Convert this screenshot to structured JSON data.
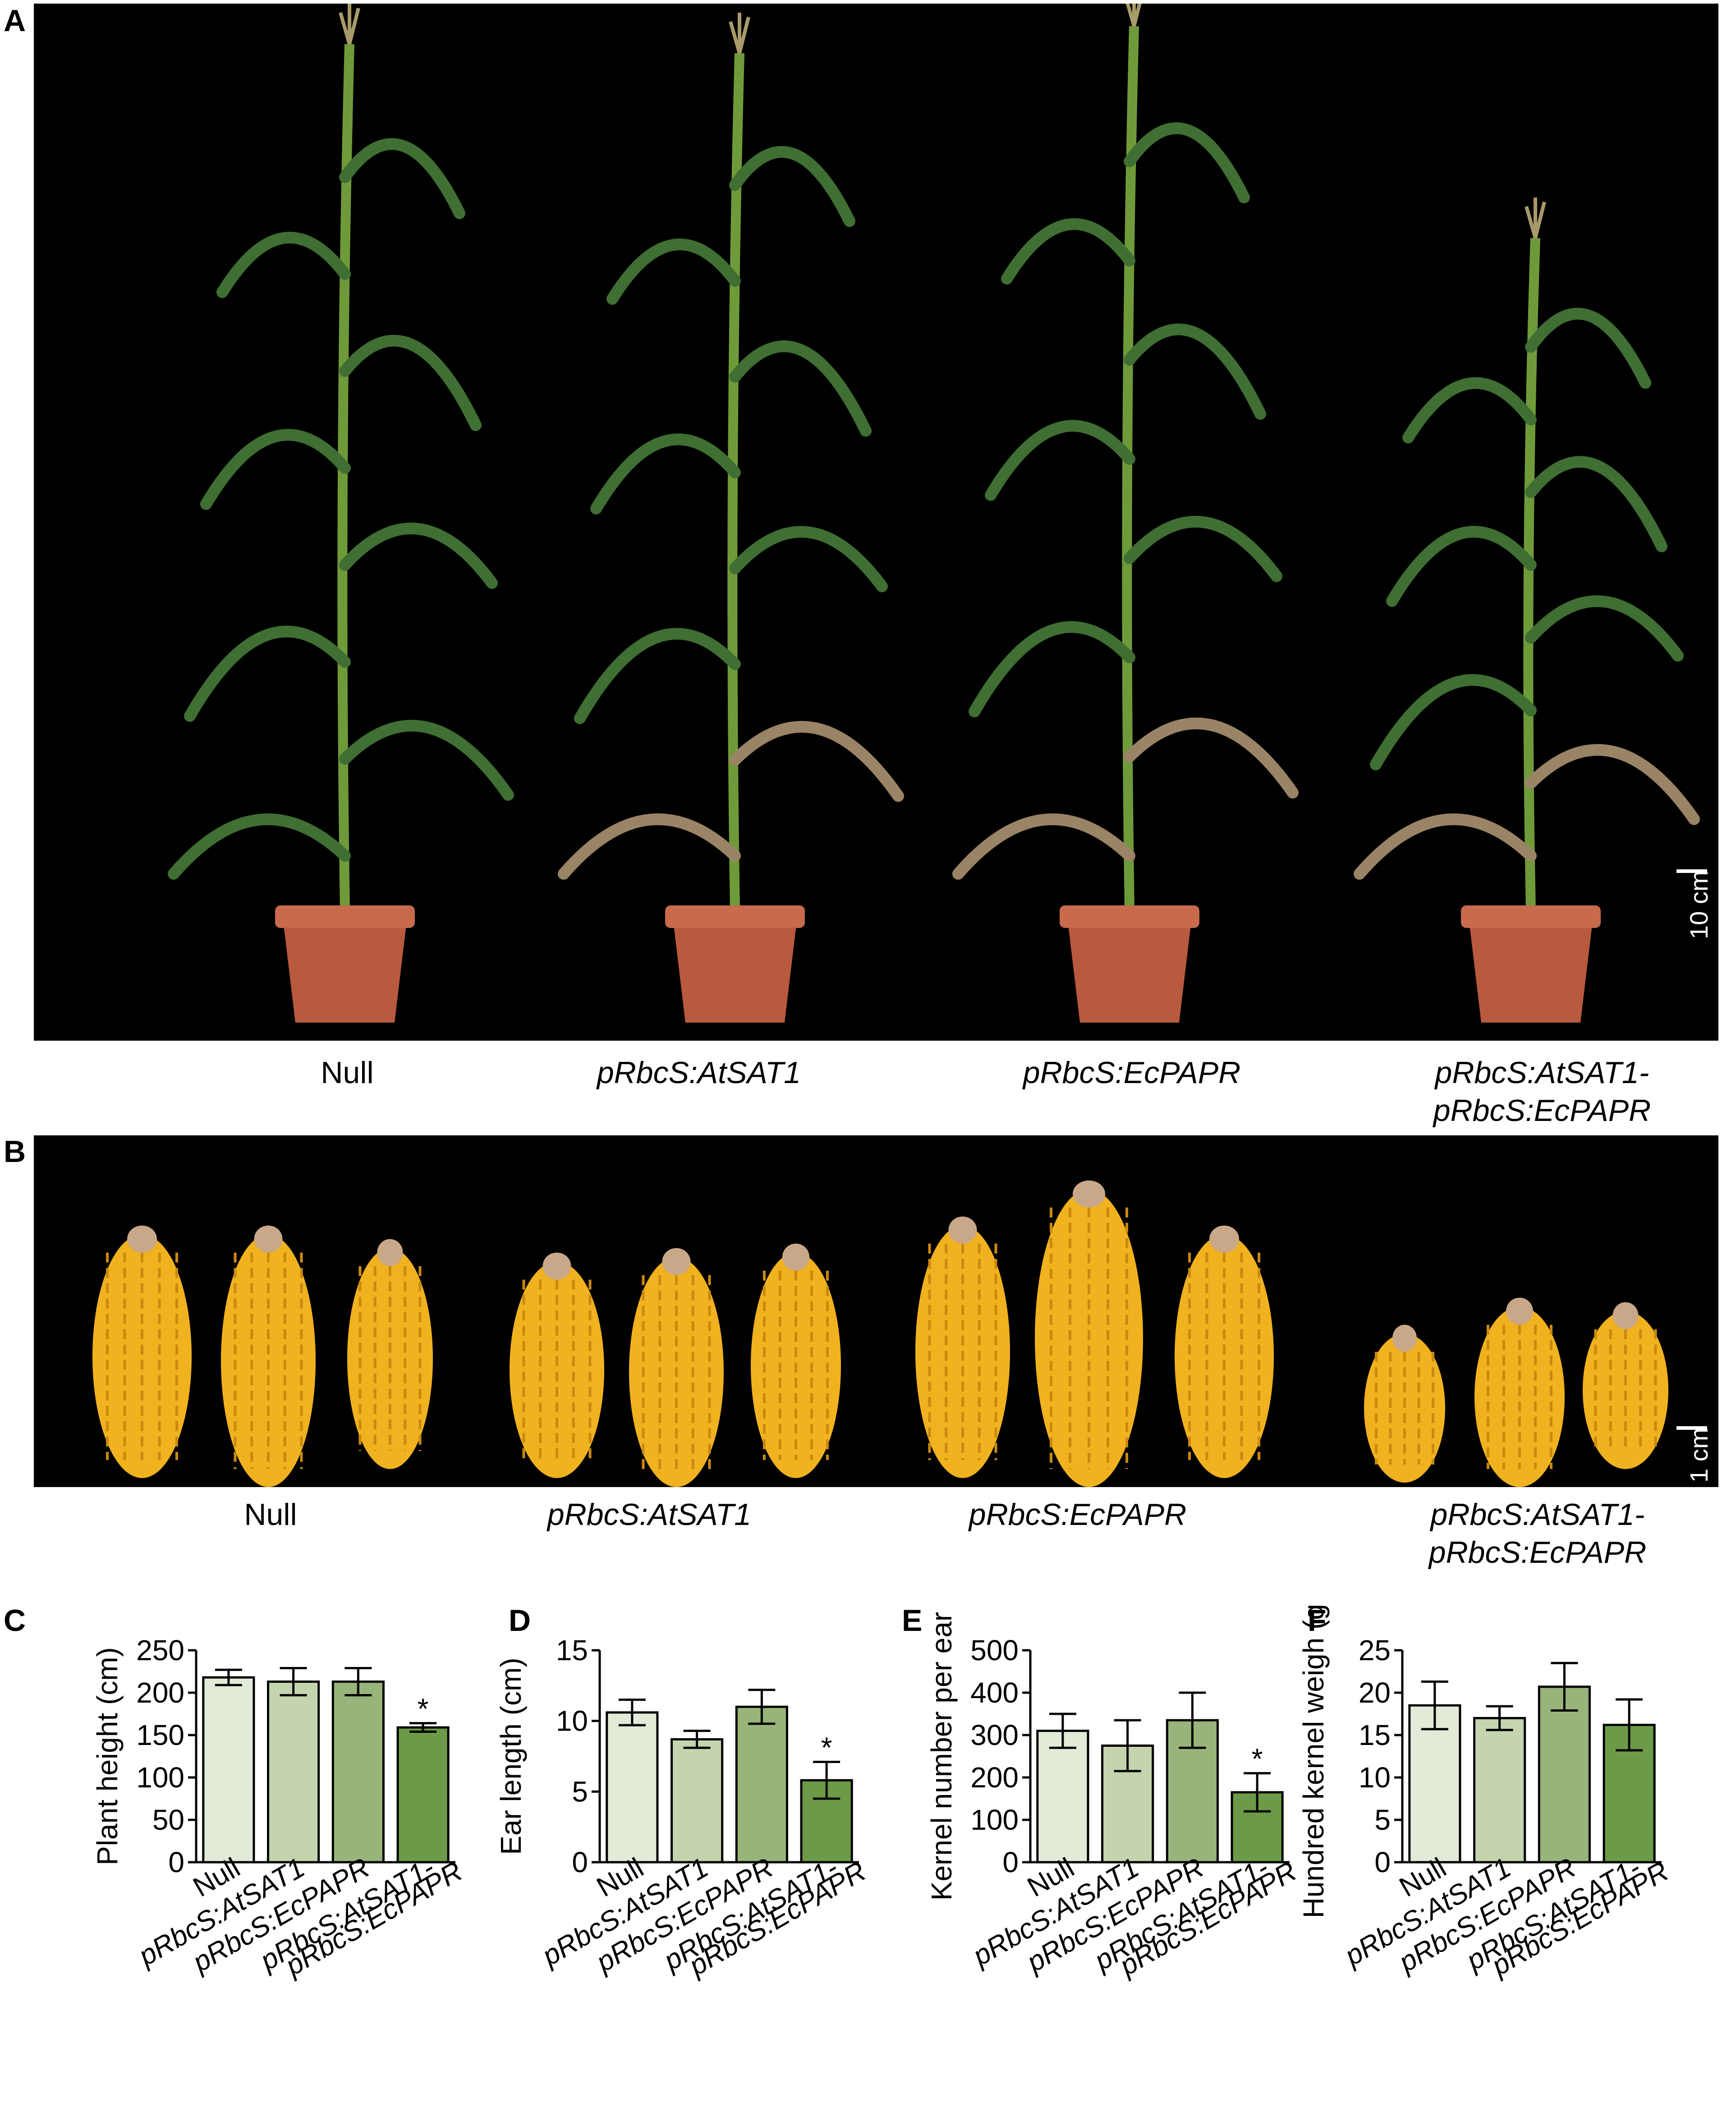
{
  "panels": {
    "a": "A",
    "b": "B",
    "c": "C",
    "d": "D",
    "e": "E",
    "f": "F"
  },
  "genotypes": {
    "null": "Null",
    "sat1": "pRbcS:AtSAT1",
    "papr": "pRbcS:EcPAPR",
    "double_line1": "pRbcS:AtSAT1-",
    "double_line2": "pRbcS:EcPAPR"
  },
  "scale_bars": {
    "plants": "10 cm",
    "ears": "1 cm"
  },
  "colors": {
    "bar_null": "#e2ebd8",
    "bar_sat1": "#c3d4ae",
    "bar_papr": "#98b47a",
    "bar_double": "#6d9a48",
    "photo_background": "#000000",
    "pot": "#b85a3e",
    "leaf": "#3f6f32",
    "kernel": "#f0b21e"
  },
  "chart_data": [
    {
      "panel": "C",
      "type": "bar",
      "categories": [
        "Null",
        "pRbcS:AtSAT1",
        "pRbcS:EcPAPR",
        "pRbcS:AtSAT1-pRbcS:EcPAPR"
      ],
      "values": [
        218,
        213,
        213,
        159
      ],
      "errors": [
        9,
        16,
        16,
        5
      ],
      "significance": [
        "",
        "",
        "",
        "*"
      ],
      "ylabel": "Plant  height (cm)",
      "ylim": [
        0,
        250
      ],
      "yticks": [
        0,
        50,
        100,
        150,
        200,
        250
      ]
    },
    {
      "panel": "D",
      "type": "bar",
      "categories": [
        "Null",
        "pRbcS:AtSAT1",
        "pRbcS:EcPAPR",
        "pRbcS:AtSAT1-pRbcS:EcPAPR"
      ],
      "values": [
        10.6,
        8.7,
        11.0,
        5.8
      ],
      "errors": [
        0.9,
        0.6,
        1.2,
        1.3
      ],
      "significance": [
        "",
        "",
        "",
        "*"
      ],
      "ylabel": "Ear length (cm)",
      "ylim": [
        0,
        15
      ],
      "yticks": [
        0,
        5,
        10,
        15
      ]
    },
    {
      "panel": "E",
      "type": "bar",
      "categories": [
        "Null",
        "pRbcS:AtSAT1",
        "pRbcS:EcPAPR",
        "pRbcS:AtSAT1-pRbcS:EcPAPR"
      ],
      "values": [
        310,
        275,
        335,
        165
      ],
      "errors": [
        40,
        60,
        65,
        45
      ],
      "significance": [
        "",
        "",
        "",
        "*"
      ],
      "ylabel": "Kernel number per ear",
      "ylim": [
        0,
        500
      ],
      "yticks": [
        0,
        100,
        200,
        300,
        400,
        500
      ]
    },
    {
      "panel": "F",
      "type": "bar",
      "categories": [
        "Null",
        "pRbcS:AtSAT1",
        "pRbcS:EcPAPR",
        "pRbcS:AtSAT1-pRbcS:EcPAPR"
      ],
      "values": [
        18.5,
        17.0,
        20.7,
        16.2
      ],
      "errors": [
        2.8,
        1.4,
        2.8,
        3.0
      ],
      "significance": [
        "",
        "",
        "",
        ""
      ],
      "ylabel": "Hundred kernel weigh (g)",
      "ylim": [
        0,
        25
      ],
      "yticks": [
        0,
        5,
        10,
        15,
        20,
        25
      ]
    }
  ]
}
